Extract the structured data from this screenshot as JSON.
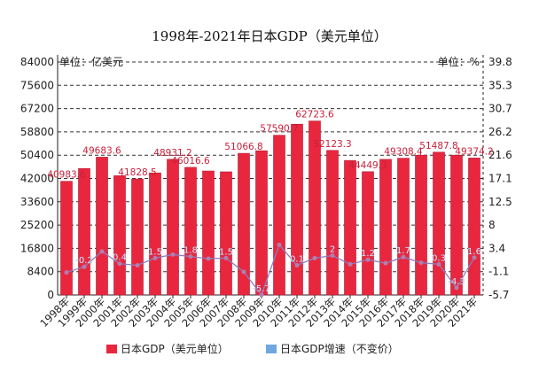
{
  "chart_data": {
    "type": "bar",
    "title": "1998年-2021年日本GDP（美元单位）",
    "left_unit": "单位：亿美元",
    "right_unit": "单位：%",
    "categories": [
      "1998年",
      "1999年",
      "2000年",
      "2001年",
      "2002年",
      "2003年",
      "2004年",
      "2005年",
      "2006年",
      "2007年",
      "2008年",
      "2009年",
      "2010年",
      "2011年",
      "2012年",
      "2013年",
      "2014年",
      "2015年",
      "2016年",
      "2017年",
      "2018年",
      "2019年",
      "2020年",
      "2021年"
    ],
    "series": [
      {
        "name": "日本GDP（美元单位）",
        "type": "bar",
        "color": "#e8273f",
        "values": [
          40983.6,
          45600,
          49683.6,
          43000,
          41828.5,
          44000,
          48931.2,
          46016.6,
          44700,
          44400,
          51066.8,
          52000,
          57590.7,
          61570,
          62723.6,
          52123.3,
          48500,
          44449.3,
          48900,
          49308.4,
          50400,
          51487.8,
          50400,
          49374.2
        ],
        "labels": [
          "40983.6",
          "",
          "49683.6",
          "",
          "41828.5",
          "",
          "48931.2",
          "46016.6",
          "",
          "",
          "51066.8",
          "",
          "57590.7",
          "",
          "62723.6",
          "52123.3",
          "",
          "44449.3",
          "",
          "49308.4",
          "",
          "51487.8",
          "",
          "49374.2"
        ]
      },
      {
        "name": "日本GDP增速（不变价）",
        "type": "line",
        "color": "#8a7fc0",
        "values": [
          -1.3,
          -0.2,
          2.8,
          0.4,
          0.1,
          1.5,
          2.2,
          1.8,
          1.4,
          1.5,
          -1.2,
          -5.7,
          4.1,
          0.1,
          1.5,
          2,
          0.3,
          1.2,
          0.5,
          1.7,
          0.6,
          0.3,
          -4.3,
          1.6
        ],
        "labels": [
          "",
          "-0.2",
          "",
          "0.4",
          "",
          "1.5",
          "",
          "1.8",
          "",
          "1.5",
          "",
          "-5.7",
          "",
          "0.1",
          "",
          "2",
          "",
          "1.2",
          "",
          "1.7",
          "",
          "0.3",
          "-4.3",
          "1.6"
        ]
      }
    ],
    "y_left": {
      "min": 0,
      "max": 84000,
      "ticks": [
        "0",
        "8400",
        "16800",
        "25200",
        "33600",
        "42000",
        "50400",
        "58800",
        "67200",
        "75600",
        "84000"
      ]
    },
    "y_right": {
      "min": -5.7,
      "max": 39.8,
      "ticks": [
        "-5.7",
        "-1.1",
        "3.4",
        "8",
        "12.5",
        "17.1",
        "21.6",
        "26.2",
        "30.7",
        "35.3",
        "39.8"
      ]
    },
    "grid": true,
    "legend": "bottom"
  }
}
